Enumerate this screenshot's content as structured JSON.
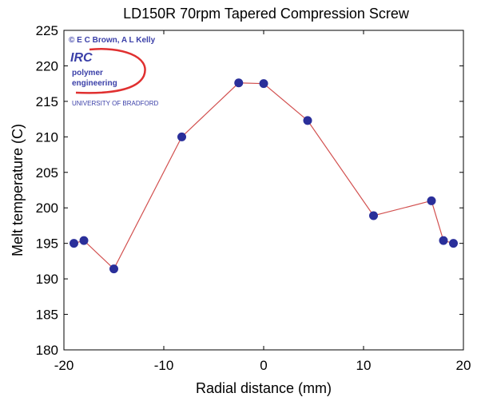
{
  "chart_data": {
    "type": "line",
    "title": "LD150R 70rpm Tapered Compression Screw",
    "xlabel": "Radial distance (mm)",
    "ylabel": "Melt temperature (C)",
    "xlim": [
      -20,
      20
    ],
    "ylim": [
      180,
      225
    ],
    "xticks": [
      "-20",
      "-10",
      "0",
      "10",
      "20"
    ],
    "yticks": [
      "180",
      "185",
      "190",
      "195",
      "200",
      "205",
      "210",
      "215",
      "220",
      "225"
    ],
    "grid": false,
    "line_color": "#d2504f",
    "marker_color": "#2a2f9a",
    "series": [
      {
        "x": [
          -19,
          -18,
          -15,
          -8.2,
          -2.5,
          0,
          4.4,
          11,
          16.8,
          18,
          19
        ],
        "y": [
          195,
          195.4,
          191.4,
          210,
          217.6,
          217.5,
          212.3,
          198.9,
          201,
          195.4,
          195
        ]
      }
    ]
  },
  "logo": {
    "credit": "© E C Brown, A L Kelly",
    "irc": "IRC",
    "line1": "polymer",
    "line2": "engineering",
    "university": "UNIVERSITY OF BRADFORD"
  }
}
